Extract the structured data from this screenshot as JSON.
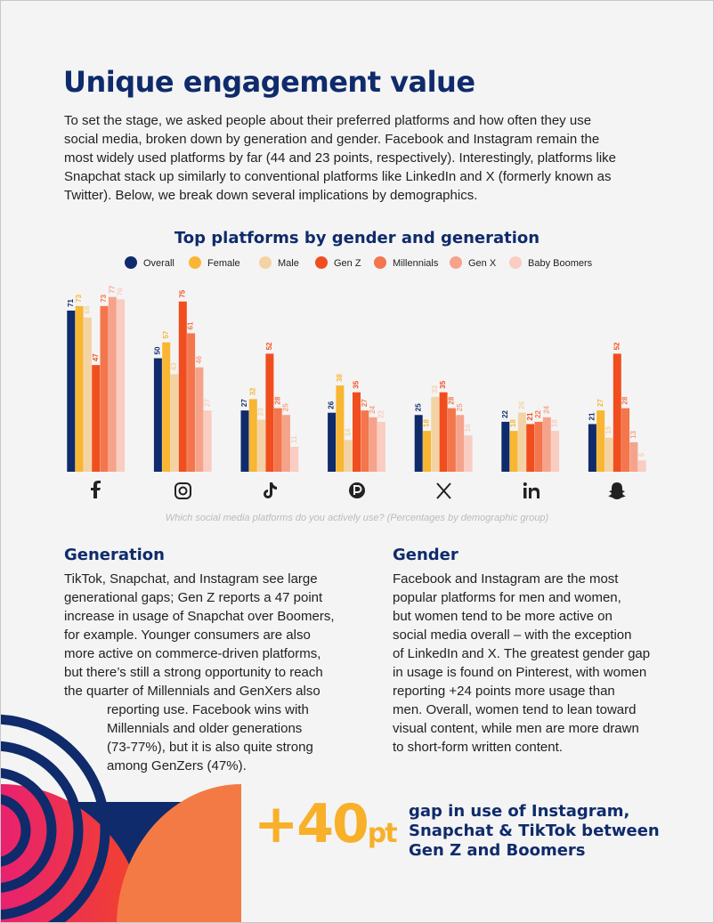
{
  "header": {
    "title": "Unique engagement value"
  },
  "intro": {
    "lines": [
      "To set the stage, we asked people about their preferred platforms and how often they use",
      "social media, broken down by generation and gender. Facebook and Instagram remain the",
      "most widely used platforms by far (44 and 23 points, respectively). Interestingly, platforms like",
      "Snapchat stack up similarly to conventional platforms like LinkedIn and X (formerly known as",
      "Twitter). Below, we break down several implications by demographics."
    ]
  },
  "chart_data": {
    "type": "bar",
    "title": "Top platforms by gender and generation",
    "caption": "Which social media platforms do you actively use? (Percentages by demographic group)",
    "categories": [
      null,
      null,
      null,
      null,
      null,
      null,
      null
    ],
    "ylim": [
      0,
      80
    ],
    "series": [
      {
        "name": "Overall",
        "color": "#0f2b6b",
        "values": [
          71,
          50,
          27,
          26,
          25,
          22,
          21
        ]
      },
      {
        "name": "Female",
        "color": "#f8b633",
        "values": [
          73,
          57,
          32,
          38,
          18,
          18,
          27
        ]
      },
      {
        "name": "Male",
        "color": "#f3d3a4",
        "values": [
          68,
          43,
          23,
          14,
          33,
          26,
          15
        ]
      },
      {
        "name": "Gen Z",
        "color": "#f04e1f",
        "values": [
          47,
          75,
          52,
          35,
          35,
          21,
          52
        ]
      },
      {
        "name": "Millennials",
        "color": "#f3764d",
        "values": [
          73,
          61,
          28,
          27,
          28,
          22,
          28
        ]
      },
      {
        "name": "Gen X",
        "color": "#f6a38b",
        "values": [
          77,
          46,
          25,
          24,
          25,
          24,
          13
        ]
      },
      {
        "name": "Baby Boomers",
        "color": "#f9cdc1",
        "values": [
          76,
          27,
          11,
          22,
          16,
          18,
          5
        ]
      }
    ]
  },
  "generation": {
    "heading": "Generation",
    "lines": [
      "TikTok, Snapchat, and Instagram see large",
      "generational gaps; Gen Z reports a 47 point",
      "increase in usage of Snapchat over Boomers,",
      "for example. Younger consumers are also",
      "more active on commerce-driven platforms,",
      "but there’s still a strong opportunity to reach",
      "the quarter of Millennials and GenXers also",
      "reporting use. Facebook wins with",
      "Millennials and older generations",
      "(73-77%), but it is also quite strong",
      "among GenZers (47%)."
    ]
  },
  "gender": {
    "heading": "Gender",
    "lines": [
      "Facebook and Instagram are the most",
      "popular platforms for men and women,",
      "but women tend to be more active on",
      "social media overall – with the exception",
      "of LinkedIn and X. The greatest gender gap",
      "in usage is found on Pinterest, with women",
      "reporting +24 points more usage than",
      "men. Overall, women tend to lean toward",
      "visual content, while men are more drawn",
      "to short-form written content."
    ]
  },
  "stat": {
    "value": "+40",
    "unit": "pt",
    "lines": [
      "gap in use of Instagram,",
      "Snapchat & TikTok between",
      "Gen Z and Boomers"
    ]
  }
}
